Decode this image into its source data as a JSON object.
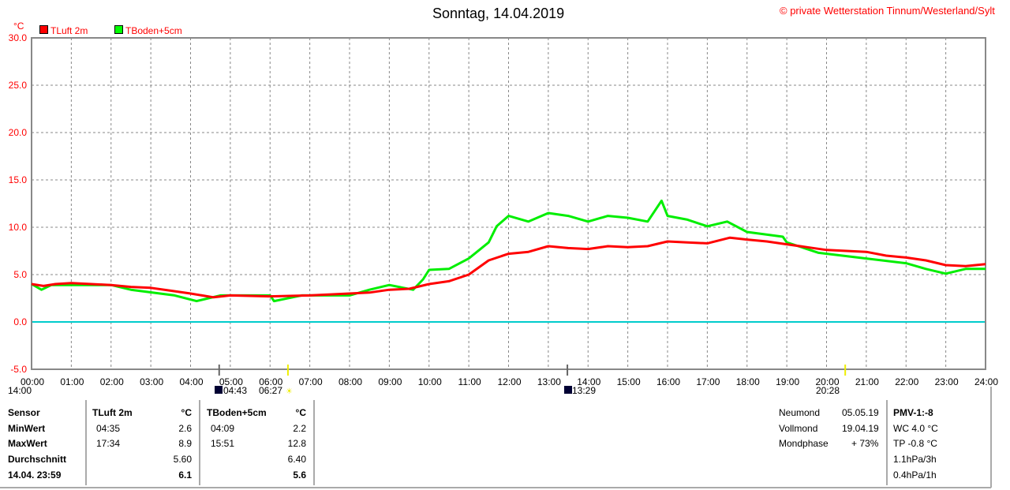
{
  "header": {
    "title": "Sonntag, 14.04.2019",
    "copyright": "© private Wetterstation Tinnum/Westerland/Sylt",
    "unit": "°C"
  },
  "colors": {
    "tluft": "#ff0000",
    "tboden": "#00ee00",
    "zero": "#00cccc"
  },
  "astro": {
    "moonset": "14:00",
    "moonrise_like": "04:43",
    "sunrise": "06:27",
    "noon": "13:29",
    "sunset": "20:28"
  },
  "chart_data": {
    "type": "line",
    "title": "Sonntag, 14.04.2019",
    "ylabel": "°C",
    "ylim": [
      -5,
      30
    ],
    "xlim": [
      0,
      24
    ],
    "yticks": [
      "30.0",
      "25.0",
      "20.0",
      "15.0",
      "10.0",
      "5.0",
      "0.0",
      "-5.0"
    ],
    "xticks": [
      "00:00",
      "01:00",
      "02:00",
      "03:00",
      "04:00",
      "05:00",
      "06:00",
      "07:00",
      "08:00",
      "09:00",
      "10:00",
      "11:00",
      "12:00",
      "13:00",
      "14:00",
      "15:00",
      "16:00",
      "17:00",
      "18:00",
      "19:00",
      "20:00",
      "21:00",
      "22:00",
      "23:00",
      "24:00"
    ],
    "series": [
      {
        "name": "TLuft 2m",
        "color": "#ff0000",
        "points": [
          [
            0,
            4.0
          ],
          [
            0.3,
            3.8
          ],
          [
            0.6,
            4.0
          ],
          [
            1,
            4.1
          ],
          [
            2,
            3.9
          ],
          [
            2.5,
            3.7
          ],
          [
            3,
            3.6
          ],
          [
            3.5,
            3.3
          ],
          [
            4,
            3.0
          ],
          [
            4.58,
            2.6
          ],
          [
            5,
            2.8
          ],
          [
            6,
            2.7
          ],
          [
            7,
            2.8
          ],
          [
            8,
            3.0
          ],
          [
            8.5,
            3.1
          ],
          [
            9,
            3.4
          ],
          [
            9.5,
            3.5
          ],
          [
            10,
            4.0
          ],
          [
            10.5,
            4.3
          ],
          [
            11,
            5.0
          ],
          [
            11.5,
            6.5
          ],
          [
            12,
            7.2
          ],
          [
            12.5,
            7.4
          ],
          [
            13,
            8.0
          ],
          [
            13.5,
            7.8
          ],
          [
            14,
            7.7
          ],
          [
            14.5,
            8.0
          ],
          [
            15,
            7.9
          ],
          [
            15.5,
            8.0
          ],
          [
            16,
            8.5
          ],
          [
            16.5,
            8.4
          ],
          [
            17,
            8.3
          ],
          [
            17.57,
            8.9
          ],
          [
            18,
            8.7
          ],
          [
            18.5,
            8.5
          ],
          [
            19,
            8.2
          ],
          [
            19.5,
            7.9
          ],
          [
            20,
            7.6
          ],
          [
            21,
            7.4
          ],
          [
            21.5,
            7.0
          ],
          [
            22,
            6.8
          ],
          [
            22.5,
            6.5
          ],
          [
            23,
            6.0
          ],
          [
            23.5,
            5.9
          ],
          [
            24,
            6.1
          ]
        ]
      },
      {
        "name": "TBoden+5cm",
        "color": "#00ee00",
        "points": [
          [
            0,
            4.0
          ],
          [
            0.25,
            3.4
          ],
          [
            0.5,
            3.9
          ],
          [
            2,
            3.9
          ],
          [
            2.5,
            3.4
          ],
          [
            3.6,
            2.8
          ],
          [
            4.15,
            2.2
          ],
          [
            4.75,
            2.8
          ],
          [
            6,
            2.8
          ],
          [
            6.1,
            2.2
          ],
          [
            6.8,
            2.8
          ],
          [
            8,
            2.8
          ],
          [
            8.5,
            3.4
          ],
          [
            9,
            3.9
          ],
          [
            9.6,
            3.4
          ],
          [
            9.85,
            4.5
          ],
          [
            10,
            5.5
          ],
          [
            10.5,
            5.6
          ],
          [
            11,
            6.7
          ],
          [
            11.5,
            8.4
          ],
          [
            11.7,
            10.1
          ],
          [
            12,
            11.2
          ],
          [
            12.5,
            10.6
          ],
          [
            13,
            11.5
          ],
          [
            13.5,
            11.2
          ],
          [
            14,
            10.6
          ],
          [
            14.5,
            11.2
          ],
          [
            15,
            11.0
          ],
          [
            15.5,
            10.6
          ],
          [
            15.85,
            12.8
          ],
          [
            16,
            11.2
          ],
          [
            16.5,
            10.8
          ],
          [
            17,
            10.1
          ],
          [
            17.5,
            10.6
          ],
          [
            18,
            9.5
          ],
          [
            18.9,
            9.0
          ],
          [
            19,
            8.4
          ],
          [
            19.8,
            7.3
          ],
          [
            21,
            6.7
          ],
          [
            22,
            6.2
          ],
          [
            22.5,
            5.6
          ],
          [
            23,
            5.1
          ],
          [
            23.5,
            5.6
          ],
          [
            24,
            5.6
          ]
        ]
      }
    ]
  },
  "stats": {
    "col0": [
      "Sensor",
      "MinWert",
      "MaxWert",
      "Durchschnitt",
      "14.04. 23:59"
    ],
    "tluft": {
      "name": "TLuft 2m",
      "unit": "°C",
      "min_time": "04:35",
      "min": "2.6",
      "max_time": "17:34",
      "max": "8.9",
      "avg": "5.60",
      "current": "6.1"
    },
    "tboden": {
      "name": "TBoden+5cm",
      "unit": "°C",
      "min_time": "04:09",
      "min": "2.2",
      "max_time": "15:51",
      "max": "12.8",
      "avg": "6.40",
      "current": "5.6"
    }
  },
  "moon": {
    "neumond_label": "Neumond",
    "neumond": "05.05.19",
    "vollmond_label": "Vollmond",
    "vollmond": "19.04.19",
    "phase_label": "Mondphase",
    "phase": "+ 73%"
  },
  "extra": {
    "pmv": "PMV-1:-8",
    "wc": "WC 4.0 °C",
    "tp": "TP -0.8 °C",
    "p3": "1.1hPa/3h",
    "p1": "0.4hPa/1h"
  }
}
